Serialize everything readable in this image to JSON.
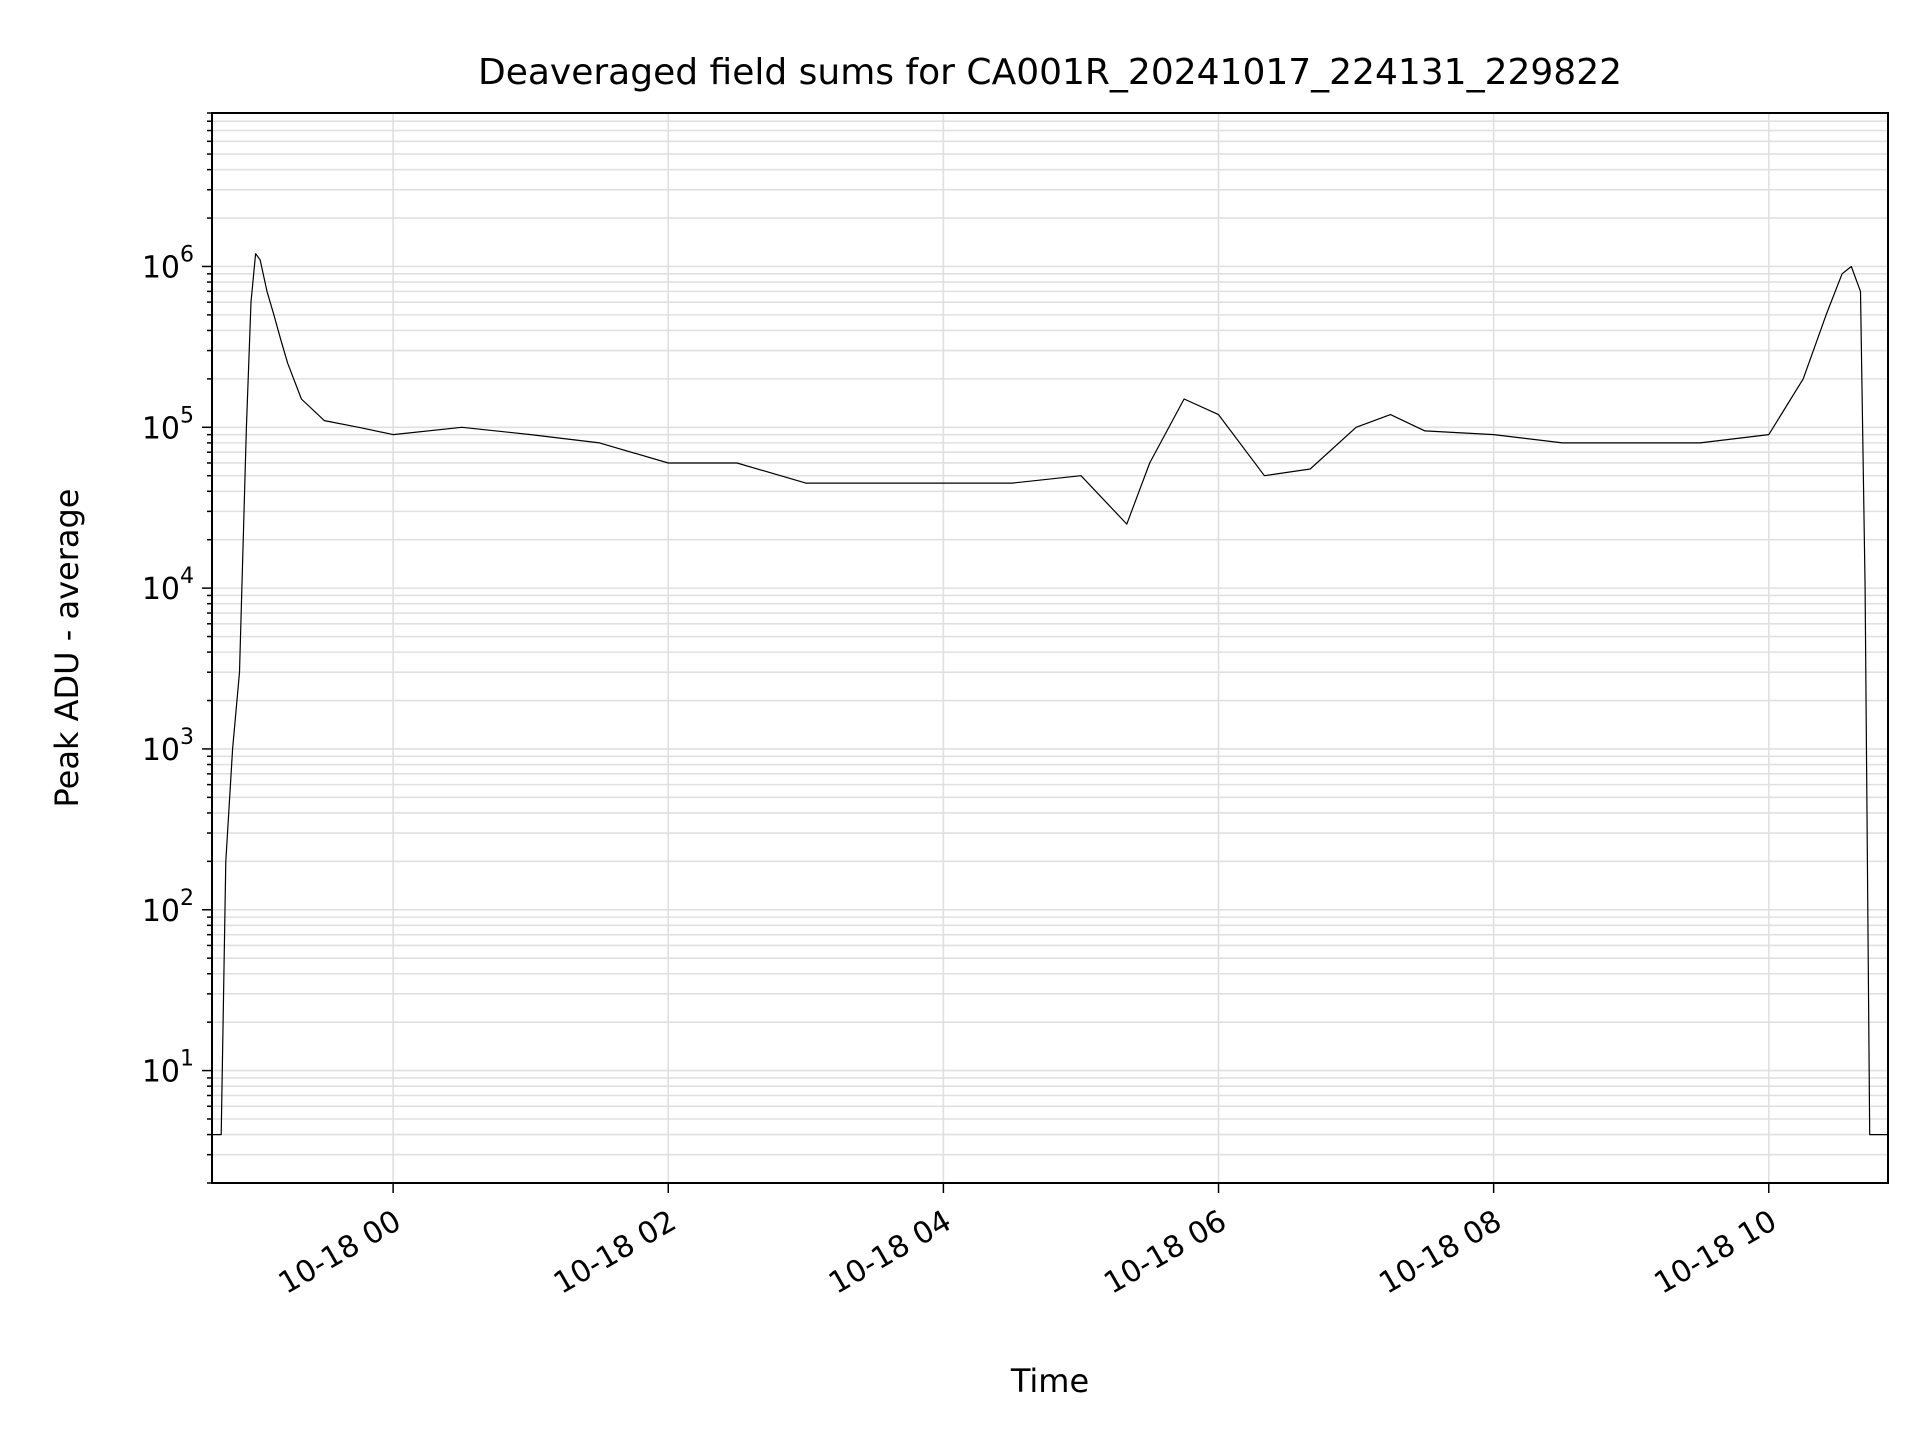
{
  "chart_data": {
    "type": "line",
    "title": "Deaveraged field sums for CA001R_20241017_224131_229822",
    "xlabel": "Time",
    "ylabel": "Peak ADU - average",
    "yscale": "log",
    "ylim": [
      2,
      9000000
    ],
    "xlim": [
      "2024-10-17 22:41",
      "2024-10-18 10:52"
    ],
    "grid": true,
    "line_color": "#000000",
    "x_ticks": [
      "10-18 00",
      "10-18 02",
      "10-18 04",
      "10-18 06",
      "10-18 08",
      "10-18 10"
    ],
    "y_ticks": [
      {
        "base": "10",
        "exp": "1"
      },
      {
        "base": "10",
        "exp": "2"
      },
      {
        "base": "10",
        "exp": "3"
      },
      {
        "base": "10",
        "exp": "4"
      },
      {
        "base": "10",
        "exp": "5"
      },
      {
        "base": "10",
        "exp": "6"
      }
    ],
    "series": [
      {
        "x": [
          "2024-10-17 22:41",
          "2024-10-17 22:45",
          "2024-10-17 22:47",
          "2024-10-17 22:50",
          "2024-10-17 22:53",
          "2024-10-17 22:56",
          "2024-10-17 22:58",
          "2024-10-17 23:00",
          "2024-10-17 23:02",
          "2024-10-17 23:05",
          "2024-10-17 23:08",
          "2024-10-17 23:11",
          "2024-10-17 23:14",
          "2024-10-17 23:20",
          "2024-10-17 23:30",
          "2024-10-17 23:45",
          "2024-10-18 00:00",
          "2024-10-18 00:30",
          "2024-10-18 01:00",
          "2024-10-18 01:30",
          "2024-10-18 02:00",
          "2024-10-18 02:30",
          "2024-10-18 03:00",
          "2024-10-18 03:30",
          "2024-10-18 04:00",
          "2024-10-18 04:30",
          "2024-10-18 05:00",
          "2024-10-18 05:20",
          "2024-10-18 05:30",
          "2024-10-18 05:45",
          "2024-10-18 06:00",
          "2024-10-18 06:20",
          "2024-10-18 06:40",
          "2024-10-18 07:00",
          "2024-10-18 07:15",
          "2024-10-18 07:30",
          "2024-10-18 08:00",
          "2024-10-18 08:30",
          "2024-10-18 09:00",
          "2024-10-18 09:30",
          "2024-10-18 10:00",
          "2024-10-18 10:15",
          "2024-10-18 10:25",
          "2024-10-18 10:32",
          "2024-10-18 10:36",
          "2024-10-18 10:40",
          "2024-10-18 10:42",
          "2024-10-18 10:44",
          "2024-10-18 10:46",
          "2024-10-18 10:52"
        ],
        "y": [
          4,
          4,
          200,
          1000,
          3000,
          100000,
          600000,
          1200000,
          1100000,
          700000,
          500000,
          350000,
          250000,
          150000,
          110000,
          100000,
          90000,
          100000,
          90000,
          80000,
          60000,
          60000,
          45000,
          45000,
          45000,
          45000,
          50000,
          25000,
          60000,
          150000,
          120000,
          50000,
          55000,
          100000,
          120000,
          95000,
          90000,
          80000,
          80000,
          80000,
          90000,
          200000,
          500000,
          900000,
          1000000,
          700000,
          10000,
          4,
          4,
          4
        ]
      }
    ]
  }
}
